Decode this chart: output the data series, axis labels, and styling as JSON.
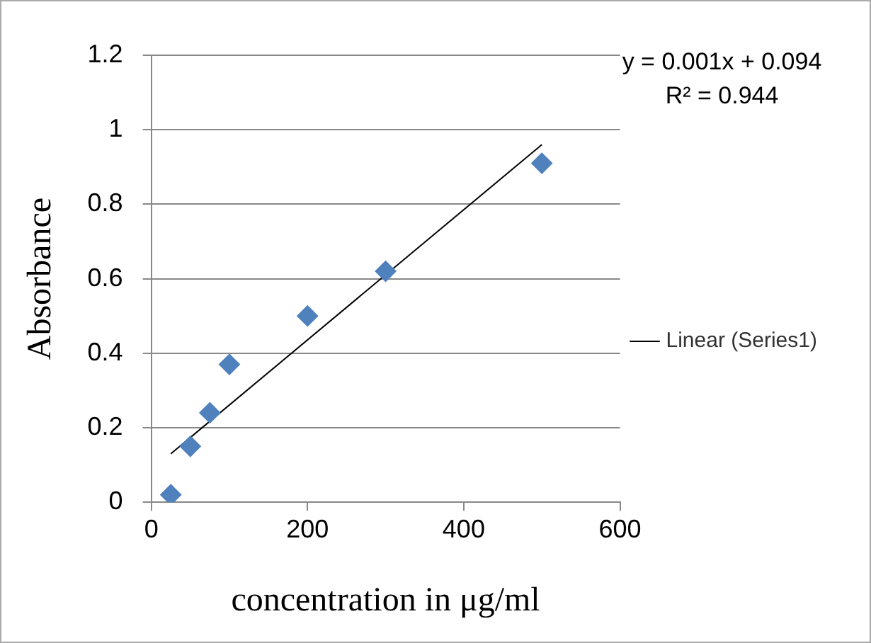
{
  "chart_data": {
    "type": "scatter",
    "xlabel": "concentration in μg/ml",
    "ylabel": "Absorbance",
    "xlim": [
      0,
      600
    ],
    "xticks": [
      0,
      200,
      400,
      600
    ],
    "ylim": [
      0,
      1.2
    ],
    "yticks": [
      0,
      0.2,
      0.4,
      0.6,
      0.8,
      1,
      1.2
    ],
    "grid": "y",
    "legend": "right",
    "marker": "diamond",
    "series": [
      {
        "color": "#4f81bd",
        "x": [
          25,
          50,
          75,
          100,
          200,
          300,
          500
        ],
        "values": [
          0.02,
          0.15,
          0.24,
          0.37,
          0.5,
          0.62,
          0.91
        ]
      },
      {
        "type": "line",
        "name": "Linear (Series1)",
        "color": "#000000",
        "marker": "none",
        "x": [
          25,
          500
        ],
        "values": [
          0.13,
          0.96
        ]
      }
    ],
    "annotations": [
      "y = 0.001x + 0.094",
      "R² = 0.944"
    ]
  }
}
